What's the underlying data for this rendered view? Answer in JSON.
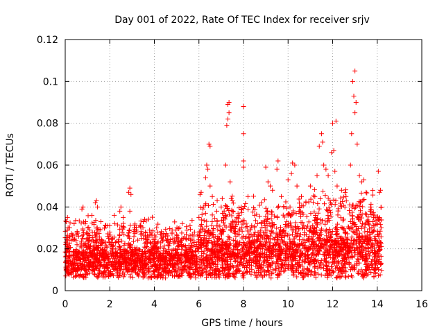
{
  "chart_data": {
    "type": "scatter",
    "title": "Day 001 of 2022, Rate Of TEC Index for receiver srjv",
    "xlabel": "GPS time / hours",
    "ylabel": "ROTI / TECUs",
    "xlim": [
      0,
      16
    ],
    "ylim": [
      0,
      0.12
    ],
    "xticks": [
      0,
      2,
      4,
      6,
      8,
      10,
      12,
      14,
      16
    ],
    "xtick_labels": [
      "0",
      "2",
      "4",
      "6",
      "8",
      "10",
      "12",
      "14",
      "16"
    ],
    "yticks": [
      0,
      0.02,
      0.04,
      0.06,
      0.08,
      0.1,
      0.12
    ],
    "ytick_labels": [
      "0",
      "0.02",
      "0.04",
      "0.06",
      "0.08",
      "0.1",
      "0.12"
    ],
    "grid": true,
    "marker": "plus",
    "color": "#ff0000",
    "x_data_range": [
      0,
      14.2
    ],
    "dense_band": {
      "x_range": [
        0,
        14.2
      ],
      "y_range": [
        0.005,
        0.03
      ],
      "note": "thousands of overlapping ROTI samples"
    },
    "series": [
      {
        "name": "ROTI",
        "points": [
          [
            0.05,
            0.033
          ],
          [
            0.1,
            0.035
          ],
          [
            0.2,
            0.03
          ],
          [
            0.4,
            0.032
          ],
          [
            0.6,
            0.026
          ],
          [
            0.75,
            0.039
          ],
          [
            0.8,
            0.04
          ],
          [
            1.0,
            0.03
          ],
          [
            1.2,
            0.036
          ],
          [
            1.35,
            0.042
          ],
          [
            1.4,
            0.043
          ],
          [
            1.45,
            0.04
          ],
          [
            1.6,
            0.033
          ],
          [
            1.8,
            0.031
          ],
          [
            2.0,
            0.028
          ],
          [
            2.2,
            0.036
          ],
          [
            2.45,
            0.038
          ],
          [
            2.5,
            0.04
          ],
          [
            2.6,
            0.035
          ],
          [
            2.85,
            0.047
          ],
          [
            2.9,
            0.049
          ],
          [
            2.95,
            0.046
          ],
          [
            2.9,
            0.038
          ],
          [
            3.1,
            0.03
          ],
          [
            3.4,
            0.03
          ],
          [
            3.6,
            0.028
          ],
          [
            3.8,
            0.027
          ],
          [
            4.1,
            0.03
          ],
          [
            4.3,
            0.027
          ],
          [
            4.5,
            0.026
          ],
          [
            4.8,
            0.029
          ],
          [
            5.0,
            0.027
          ],
          [
            5.3,
            0.025
          ],
          [
            5.6,
            0.031
          ],
          [
            5.8,
            0.028
          ],
          [
            6.0,
            0.035
          ],
          [
            6.05,
            0.046
          ],
          [
            6.1,
            0.047
          ],
          [
            6.2,
            0.04
          ],
          [
            6.3,
            0.054
          ],
          [
            6.35,
            0.06
          ],
          [
            6.4,
            0.058
          ],
          [
            6.45,
            0.07
          ],
          [
            6.5,
            0.069
          ],
          [
            6.5,
            0.05
          ],
          [
            6.6,
            0.045
          ],
          [
            6.8,
            0.038
          ],
          [
            7.0,
            0.04
          ],
          [
            7.1,
            0.035
          ],
          [
            7.2,
            0.06
          ],
          [
            7.25,
            0.079
          ],
          [
            7.3,
            0.082
          ],
          [
            7.3,
            0.089
          ],
          [
            7.35,
            0.09
          ],
          [
            7.35,
            0.085
          ],
          [
            7.4,
            0.052
          ],
          [
            7.45,
            0.044
          ],
          [
            7.5,
            0.043
          ],
          [
            7.7,
            0.035
          ],
          [
            7.9,
            0.04
          ],
          [
            8.0,
            0.062
          ],
          [
            8.0,
            0.059
          ],
          [
            8.0,
            0.075
          ],
          [
            8.0,
            0.088
          ],
          [
            8.2,
            0.045
          ],
          [
            8.5,
            0.036
          ],
          [
            8.8,
            0.042
          ],
          [
            9.0,
            0.059
          ],
          [
            9.1,
            0.052
          ],
          [
            9.2,
            0.05
          ],
          [
            9.3,
            0.048
          ],
          [
            9.5,
            0.058
          ],
          [
            9.55,
            0.062
          ],
          [
            9.7,
            0.045
          ],
          [
            9.8,
            0.04
          ],
          [
            10.0,
            0.053
          ],
          [
            10.15,
            0.056
          ],
          [
            10.2,
            0.061
          ],
          [
            10.3,
            0.06
          ],
          [
            10.4,
            0.05
          ],
          [
            10.6,
            0.045
          ],
          [
            10.8,
            0.042
          ],
          [
            11.0,
            0.05
          ],
          [
            11.2,
            0.045
          ],
          [
            11.3,
            0.055
          ],
          [
            11.4,
            0.069
          ],
          [
            11.5,
            0.075
          ],
          [
            11.55,
            0.071
          ],
          [
            11.6,
            0.06
          ],
          [
            11.7,
            0.058
          ],
          [
            11.8,
            0.055
          ],
          [
            11.95,
            0.066
          ],
          [
            12.0,
            0.08
          ],
          [
            12.05,
            0.067
          ],
          [
            12.1,
            0.057
          ],
          [
            12.15,
            0.081
          ],
          [
            12.2,
            0.05
          ],
          [
            12.4,
            0.048
          ],
          [
            12.6,
            0.045
          ],
          [
            12.8,
            0.06
          ],
          [
            12.85,
            0.075
          ],
          [
            12.9,
            0.1
          ],
          [
            12.95,
            0.093
          ],
          [
            13.0,
            0.105
          ],
          [
            13.0,
            0.085
          ],
          [
            13.05,
            0.09
          ],
          [
            13.1,
            0.07
          ],
          [
            13.2,
            0.055
          ],
          [
            13.3,
            0.052
          ],
          [
            13.4,
            0.053
          ],
          [
            13.5,
            0.047
          ],
          [
            13.7,
            0.04
          ],
          [
            13.9,
            0.035
          ],
          [
            14.05,
            0.057
          ],
          [
            14.1,
            0.047
          ],
          [
            14.15,
            0.048
          ]
        ]
      }
    ]
  }
}
